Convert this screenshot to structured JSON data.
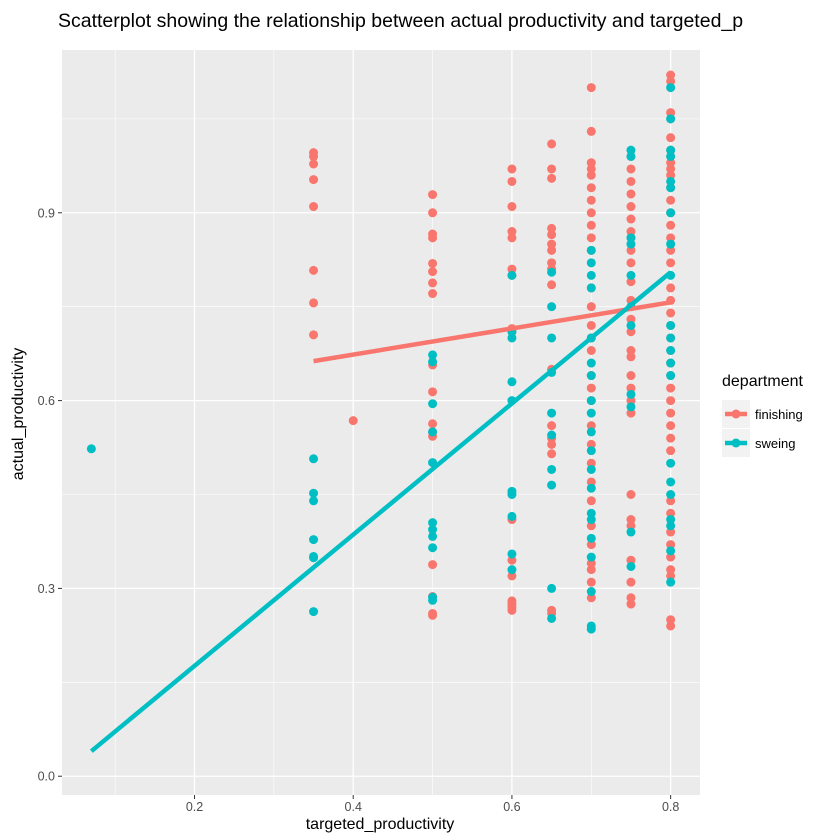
{
  "chart_data": {
    "type": "scatter",
    "title": "Scatterplot showing the relationship between actual productivity and targeted_p",
    "xlabel": "targeted_productivity",
    "ylabel": "actual_productivity",
    "xlim": [
      0.033,
      0.837
    ],
    "ylim": [
      -0.03,
      1.16
    ],
    "x_ticks": [
      0.2,
      0.4,
      0.6,
      0.8
    ],
    "x_tick_labels": [
      "0.2",
      "0.4",
      "0.6",
      "0.8"
    ],
    "y_ticks": [
      0.0,
      0.3,
      0.6,
      0.9
    ],
    "y_tick_labels": [
      "0.0",
      "0.3",
      "0.6",
      "0.9"
    ],
    "grid": true,
    "legend": {
      "title": "department",
      "placement": "right",
      "entries": [
        "finishing",
        "sweing"
      ]
    },
    "colors": {
      "finishing": "#F8766D",
      "sweing": "#00BFC4",
      "panel": "#EBEBEB",
      "grid": "#FFFFFF"
    },
    "series": [
      {
        "name": "finishing",
        "points": [
          [
            0.35,
            0.996
          ],
          [
            0.35,
            0.99
          ],
          [
            0.35,
            0.978
          ],
          [
            0.35,
            0.953
          ],
          [
            0.35,
            0.91
          ],
          [
            0.35,
            0.808
          ],
          [
            0.35,
            0.756
          ],
          [
            0.35,
            0.705
          ],
          [
            0.4,
            0.568
          ],
          [
            0.5,
            0.929
          ],
          [
            0.5,
            0.9
          ],
          [
            0.5,
            0.866
          ],
          [
            0.5,
            0.86
          ],
          [
            0.5,
            0.819
          ],
          [
            0.5,
            0.806
          ],
          [
            0.5,
            0.788
          ],
          [
            0.5,
            0.771
          ],
          [
            0.5,
            0.657
          ],
          [
            0.5,
            0.614
          ],
          [
            0.5,
            0.563
          ],
          [
            0.5,
            0.55
          ],
          [
            0.5,
            0.543
          ],
          [
            0.5,
            0.338
          ],
          [
            0.5,
            0.287
          ],
          [
            0.5,
            0.26
          ],
          [
            0.5,
            0.257
          ],
          [
            0.6,
            0.97
          ],
          [
            0.6,
            0.95
          ],
          [
            0.6,
            0.91
          ],
          [
            0.6,
            0.87
          ],
          [
            0.6,
            0.86
          ],
          [
            0.6,
            0.81
          ],
          [
            0.6,
            0.8
          ],
          [
            0.6,
            0.715
          ],
          [
            0.6,
            0.71
          ],
          [
            0.6,
            0.41
          ],
          [
            0.6,
            0.345
          ],
          [
            0.6,
            0.32
          ],
          [
            0.6,
            0.28
          ],
          [
            0.6,
            0.275
          ],
          [
            0.6,
            0.27
          ],
          [
            0.6,
            0.265
          ],
          [
            0.65,
            1.01
          ],
          [
            0.65,
            0.97
          ],
          [
            0.65,
            0.955
          ],
          [
            0.65,
            0.875
          ],
          [
            0.65,
            0.865
          ],
          [
            0.65,
            0.85
          ],
          [
            0.65,
            0.84
          ],
          [
            0.65,
            0.82
          ],
          [
            0.65,
            0.81
          ],
          [
            0.65,
            0.785
          ],
          [
            0.65,
            0.65
          ],
          [
            0.65,
            0.56
          ],
          [
            0.65,
            0.54
          ],
          [
            0.65,
            0.53
          ],
          [
            0.65,
            0.515
          ],
          [
            0.65,
            0.265
          ],
          [
            0.65,
            0.26
          ],
          [
            0.7,
            1.1
          ],
          [
            0.7,
            1.03
          ],
          [
            0.7,
            0.98
          ],
          [
            0.7,
            0.97
          ],
          [
            0.7,
            0.96
          ],
          [
            0.7,
            0.94
          ],
          [
            0.7,
            0.92
          ],
          [
            0.7,
            0.9
          ],
          [
            0.7,
            0.88
          ],
          [
            0.7,
            0.86
          ],
          [
            0.7,
            0.84
          ],
          [
            0.7,
            0.78
          ],
          [
            0.7,
            0.75
          ],
          [
            0.7,
            0.72
          ],
          [
            0.7,
            0.7
          ],
          [
            0.7,
            0.68
          ],
          [
            0.7,
            0.64
          ],
          [
            0.7,
            0.62
          ],
          [
            0.7,
            0.6
          ],
          [
            0.7,
            0.56
          ],
          [
            0.7,
            0.53
          ],
          [
            0.7,
            0.5
          ],
          [
            0.7,
            0.47
          ],
          [
            0.7,
            0.44
          ],
          [
            0.7,
            0.4
          ],
          [
            0.7,
            0.37
          ],
          [
            0.7,
            0.34
          ],
          [
            0.7,
            0.33
          ],
          [
            0.7,
            0.31
          ],
          [
            0.7,
            0.285
          ],
          [
            0.75,
            0.99
          ],
          [
            0.75,
            0.97
          ],
          [
            0.75,
            0.95
          ],
          [
            0.75,
            0.93
          ],
          [
            0.75,
            0.91
          ],
          [
            0.75,
            0.89
          ],
          [
            0.75,
            0.87
          ],
          [
            0.75,
            0.86
          ],
          [
            0.75,
            0.84
          ],
          [
            0.75,
            0.82
          ],
          [
            0.75,
            0.79
          ],
          [
            0.75,
            0.76
          ],
          [
            0.75,
            0.73
          ],
          [
            0.75,
            0.71
          ],
          [
            0.75,
            0.68
          ],
          [
            0.75,
            0.67
          ],
          [
            0.75,
            0.64
          ],
          [
            0.75,
            0.62
          ],
          [
            0.75,
            0.6
          ],
          [
            0.75,
            0.58
          ],
          [
            0.75,
            0.45
          ],
          [
            0.75,
            0.41
          ],
          [
            0.75,
            0.4
          ],
          [
            0.75,
            0.345
          ],
          [
            0.75,
            0.31
          ],
          [
            0.75,
            0.285
          ],
          [
            0.75,
            0.275
          ],
          [
            0.8,
            1.12
          ],
          [
            0.8,
            1.11
          ],
          [
            0.8,
            1.06
          ],
          [
            0.8,
            1.05
          ],
          [
            0.8,
            1.02
          ],
          [
            0.8,
            1.0
          ],
          [
            0.8,
            0.99
          ],
          [
            0.8,
            0.98
          ],
          [
            0.8,
            0.97
          ],
          [
            0.8,
            0.96
          ],
          [
            0.8,
            0.94
          ],
          [
            0.8,
            0.92
          ],
          [
            0.8,
            0.9
          ],
          [
            0.8,
            0.88
          ],
          [
            0.8,
            0.86
          ],
          [
            0.8,
            0.84
          ],
          [
            0.8,
            0.82
          ],
          [
            0.8,
            0.78
          ],
          [
            0.8,
            0.76
          ],
          [
            0.8,
            0.74
          ],
          [
            0.8,
            0.72
          ],
          [
            0.8,
            0.7
          ],
          [
            0.8,
            0.68
          ],
          [
            0.8,
            0.66
          ],
          [
            0.8,
            0.64
          ],
          [
            0.8,
            0.62
          ],
          [
            0.8,
            0.6
          ],
          [
            0.8,
            0.58
          ],
          [
            0.8,
            0.56
          ],
          [
            0.8,
            0.54
          ],
          [
            0.8,
            0.52
          ],
          [
            0.8,
            0.44
          ],
          [
            0.8,
            0.42
          ],
          [
            0.8,
            0.39
          ],
          [
            0.8,
            0.37
          ],
          [
            0.8,
            0.35
          ],
          [
            0.8,
            0.33
          ],
          [
            0.8,
            0.32
          ],
          [
            0.8,
            0.25
          ],
          [
            0.8,
            0.24
          ]
        ],
        "fit_line": [
          [
            0.35,
            0.663
          ],
          [
            0.8,
            0.757
          ]
        ]
      },
      {
        "name": "sweing",
        "points": [
          [
            0.07,
            0.523
          ],
          [
            0.35,
            0.507
          ],
          [
            0.35,
            0.452
          ],
          [
            0.35,
            0.44
          ],
          [
            0.35,
            0.378
          ],
          [
            0.35,
            0.351
          ],
          [
            0.35,
            0.349
          ],
          [
            0.35,
            0.263
          ],
          [
            0.5,
            0.673
          ],
          [
            0.5,
            0.662
          ],
          [
            0.5,
            0.595
          ],
          [
            0.5,
            0.55
          ],
          [
            0.5,
            0.501
          ],
          [
            0.5,
            0.405
          ],
          [
            0.5,
            0.394
          ],
          [
            0.5,
            0.383
          ],
          [
            0.5,
            0.365
          ],
          [
            0.5,
            0.286
          ],
          [
            0.5,
            0.281
          ],
          [
            0.6,
            0.8
          ],
          [
            0.6,
            0.71
          ],
          [
            0.6,
            0.7
          ],
          [
            0.6,
            0.63
          ],
          [
            0.6,
            0.6
          ],
          [
            0.6,
            0.455
          ],
          [
            0.6,
            0.45
          ],
          [
            0.6,
            0.415
          ],
          [
            0.6,
            0.355
          ],
          [
            0.6,
            0.33
          ],
          [
            0.65,
            0.805
          ],
          [
            0.65,
            0.75
          ],
          [
            0.65,
            0.7
          ],
          [
            0.65,
            0.645
          ],
          [
            0.65,
            0.58
          ],
          [
            0.65,
            0.545
          ],
          [
            0.65,
            0.49
          ],
          [
            0.65,
            0.465
          ],
          [
            0.65,
            0.3
          ],
          [
            0.65,
            0.252
          ],
          [
            0.7,
            0.84
          ],
          [
            0.7,
            0.82
          ],
          [
            0.7,
            0.8
          ],
          [
            0.7,
            0.78
          ],
          [
            0.7,
            0.7
          ],
          [
            0.7,
            0.66
          ],
          [
            0.7,
            0.64
          ],
          [
            0.7,
            0.6
          ],
          [
            0.7,
            0.58
          ],
          [
            0.7,
            0.55
          ],
          [
            0.7,
            0.52
          ],
          [
            0.7,
            0.49
          ],
          [
            0.7,
            0.46
          ],
          [
            0.7,
            0.42
          ],
          [
            0.7,
            0.41
          ],
          [
            0.7,
            0.38
          ],
          [
            0.7,
            0.35
          ],
          [
            0.7,
            0.295
          ],
          [
            0.7,
            0.24
          ],
          [
            0.7,
            0.235
          ],
          [
            0.75,
            1.0
          ],
          [
            0.75,
            0.99
          ],
          [
            0.75,
            0.86
          ],
          [
            0.75,
            0.85
          ],
          [
            0.75,
            0.8
          ],
          [
            0.75,
            0.75
          ],
          [
            0.75,
            0.72
          ],
          [
            0.75,
            0.61
          ],
          [
            0.75,
            0.59
          ],
          [
            0.75,
            0.39
          ],
          [
            0.75,
            0.335
          ],
          [
            0.8,
            1.1
          ],
          [
            0.8,
            1.05
          ],
          [
            0.8,
            1.0
          ],
          [
            0.8,
            0.99
          ],
          [
            0.8,
            0.95
          ],
          [
            0.8,
            0.94
          ],
          [
            0.8,
            0.9
          ],
          [
            0.8,
            0.85
          ],
          [
            0.8,
            0.8
          ],
          [
            0.8,
            0.72
          ],
          [
            0.8,
            0.7
          ],
          [
            0.8,
            0.68
          ],
          [
            0.8,
            0.66
          ],
          [
            0.8,
            0.64
          ],
          [
            0.8,
            0.5
          ],
          [
            0.8,
            0.47
          ],
          [
            0.8,
            0.45
          ],
          [
            0.8,
            0.41
          ],
          [
            0.8,
            0.4
          ],
          [
            0.8,
            0.36
          ],
          [
            0.8,
            0.31
          ]
        ],
        "fit_line": [
          [
            0.07,
            0.04
          ],
          [
            0.8,
            0.805
          ]
        ]
      }
    ]
  }
}
